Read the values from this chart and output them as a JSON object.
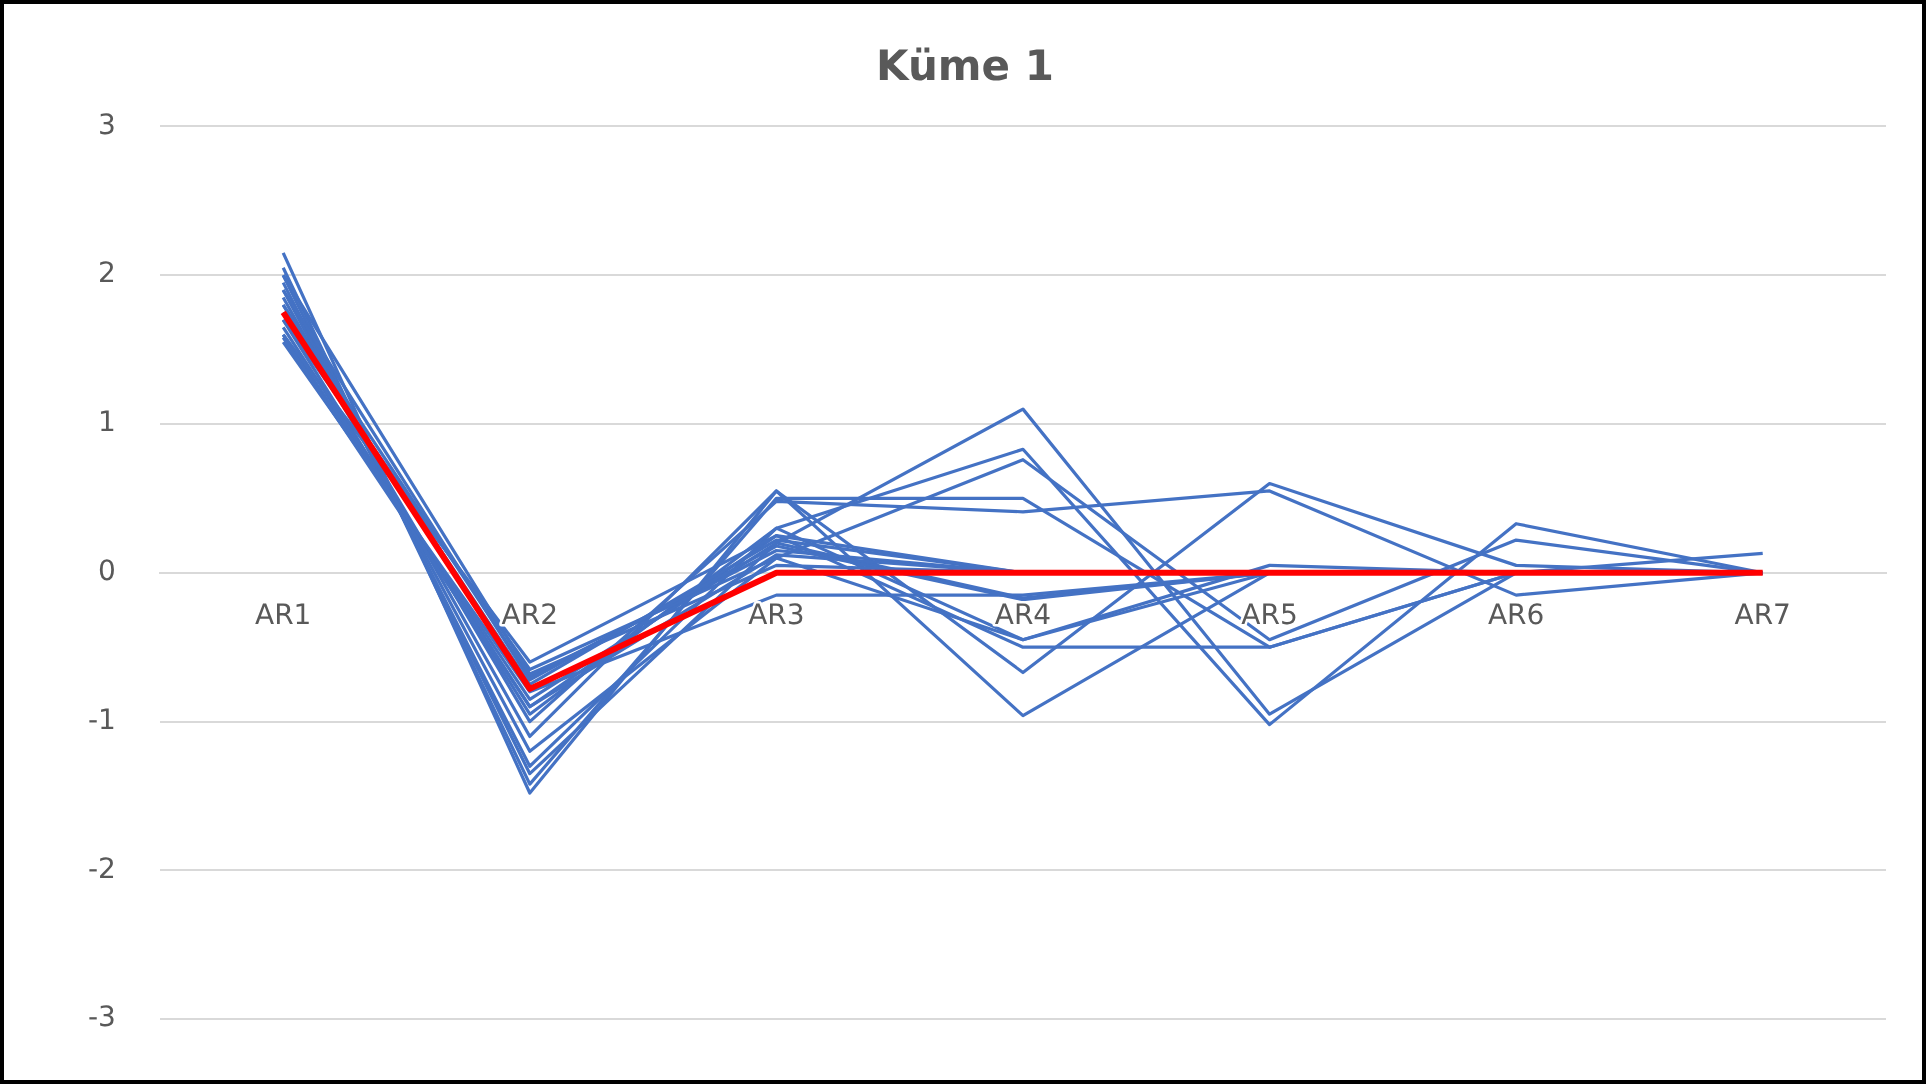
{
  "chart_data": {
    "type": "line",
    "title": "Küme 1",
    "categories": [
      "AR1",
      "AR2",
      "AR3",
      "AR4",
      "AR5",
      "AR6",
      "AR7"
    ],
    "ylim": [
      -3,
      3
    ],
    "yticks": [
      -3,
      -2,
      -1,
      0,
      1,
      2,
      3
    ],
    "grid": "y",
    "legend": false,
    "marker": "none",
    "line_style": "solid",
    "series": [
      {
        "color": "#4472c4",
        "values": [
          2.15,
          -1.48,
          0.55,
          -0.96,
          0,
          0,
          0
        ]
      },
      {
        "color": "#4472c4",
        "values": [
          2.05,
          -1.42,
          0.5,
          0.5,
          -0.5,
          0,
          0
        ]
      },
      {
        "color": "#4472c4",
        "values": [
          2.0,
          -1.35,
          0.2,
          1.1,
          -0.95,
          0,
          0
        ]
      },
      {
        "color": "#4472c4",
        "values": [
          1.95,
          -1.3,
          0.3,
          0.83,
          -1.02,
          0.33,
          0
        ]
      },
      {
        "color": "#4472c4",
        "values": [
          1.9,
          -1.2,
          0.1,
          0.76,
          -0.45,
          0.22,
          0
        ]
      },
      {
        "color": "#4472c4",
        "values": [
          1.85,
          -1.1,
          0.55,
          -0.67,
          0.6,
          0.05,
          0
        ]
      },
      {
        "color": "#4472c4",
        "values": [
          1.8,
          -1.0,
          0.48,
          0.41,
          0.55,
          -0.15,
          0
        ]
      },
      {
        "color": "#4472c4",
        "values": [
          1.7,
          -0.95,
          0.3,
          -0.45,
          0.05,
          0,
          0.13
        ]
      },
      {
        "color": "#4472c4",
        "values": [
          1.65,
          -0.9,
          0.25,
          -0.5,
          -0.5,
          0,
          0
        ]
      },
      {
        "color": "#4472c4",
        "values": [
          1.6,
          -0.85,
          0.2,
          -0.17,
          0,
          0,
          0
        ]
      },
      {
        "color": "#4472c4",
        "values": [
          1.55,
          -0.8,
          -0.15,
          -0.15,
          0,
          0,
          0
        ]
      },
      {
        "color": "#4472c4",
        "values": [
          1.75,
          -0.75,
          0.22,
          0,
          0,
          0,
          0
        ]
      },
      {
        "color": "#4472c4",
        "values": [
          1.8,
          -0.7,
          0.15,
          0,
          0,
          0,
          0
        ]
      },
      {
        "color": "#4472c4",
        "values": [
          1.7,
          -0.65,
          0.1,
          -0.45,
          0,
          0,
          0
        ]
      },
      {
        "color": "#4472c4",
        "values": [
          1.6,
          -0.6,
          0.25,
          0,
          0,
          0,
          0
        ]
      },
      {
        "color": "#4472c4",
        "values": [
          1.9,
          -0.72,
          0.18,
          -0.18,
          0,
          0,
          0
        ]
      },
      {
        "color": "#4472c4",
        "values": [
          2.0,
          -0.68,
          0.05,
          0,
          0,
          0,
          0
        ]
      },
      {
        "color": "#4472c4",
        "values": [
          1.58,
          -0.9,
          0.12,
          0,
          0,
          0,
          0
        ]
      },
      {
        "color": "#ff0000",
        "values": [
          1.75,
          -0.78,
          0,
          0,
          0,
          0,
          0
        ]
      }
    ]
  }
}
